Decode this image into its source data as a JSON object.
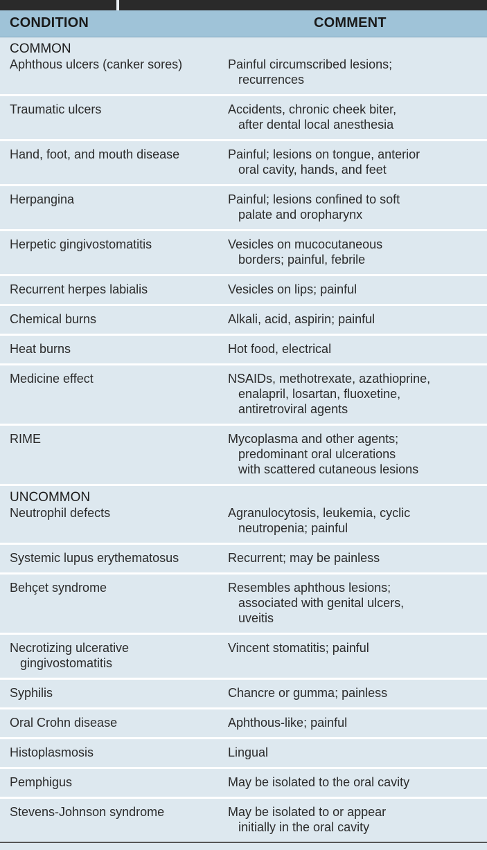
{
  "header": {
    "condition": "CONDITION",
    "comment": "COMMENT"
  },
  "sections": [
    {
      "title": "COMMON",
      "rows": [
        {
          "condition": [
            "Aphthous ulcers (canker sores)"
          ],
          "comment": [
            "Painful circumscribed lesions;",
            "recurrences"
          ]
        },
        {
          "condition": [
            "Traumatic ulcers"
          ],
          "comment": [
            "Accidents, chronic cheek biter,",
            "after dental local anesthesia"
          ]
        },
        {
          "condition": [
            "Hand, foot, and mouth disease"
          ],
          "comment": [
            "Painful; lesions on tongue, anterior",
            "oral cavity, hands, and feet"
          ]
        },
        {
          "condition": [
            "Herpangina"
          ],
          "comment": [
            "Painful; lesions confined to soft",
            "palate and oropharynx"
          ]
        },
        {
          "condition": [
            "Herpetic gingivostomatitis"
          ],
          "comment": [
            "Vesicles on mucocutaneous",
            "borders; painful, febrile"
          ]
        },
        {
          "condition": [
            "Recurrent herpes labialis"
          ],
          "comment": [
            "Vesicles on lips; painful"
          ]
        },
        {
          "condition": [
            "Chemical burns"
          ],
          "comment": [
            "Alkali, acid, aspirin; painful"
          ]
        },
        {
          "condition": [
            "Heat burns"
          ],
          "comment": [
            "Hot food, electrical"
          ]
        },
        {
          "condition": [
            "Medicine effect"
          ],
          "comment": [
            "NSAIDs, methotrexate, azathioprine,",
            "enalapril, losartan, fluoxetine,",
            "antiretroviral agents"
          ]
        },
        {
          "condition": [
            "RIME"
          ],
          "comment": [
            "Mycoplasma and other agents;",
            "predominant oral ulcerations",
            "with scattered cutaneous lesions"
          ]
        }
      ]
    },
    {
      "title": "UNCOMMON",
      "rows": [
        {
          "condition": [
            "Neutrophil defects"
          ],
          "comment": [
            "Agranulocytosis, leukemia, cyclic",
            "neutropenia; painful"
          ]
        },
        {
          "condition": [
            "Systemic lupus erythematosus"
          ],
          "comment": [
            "Recurrent; may be painless"
          ]
        },
        {
          "condition": [
            "Behçet syndrome"
          ],
          "comment": [
            "Resembles aphthous lesions;",
            "associated with genital ulcers,",
            "uveitis"
          ]
        },
        {
          "condition": [
            "Necrotizing ulcerative",
            "gingivostomatitis"
          ],
          "comment": [
            "Vincent stomatitis; painful"
          ]
        },
        {
          "condition": [
            "Syphilis"
          ],
          "comment": [
            "Chancre or gumma; painless"
          ]
        },
        {
          "condition": [
            "Oral Crohn disease"
          ],
          "comment": [
            "Aphthous-like; painful"
          ]
        },
        {
          "condition": [
            "Histoplasmosis"
          ],
          "comment": [
            "Lingual"
          ]
        },
        {
          "condition": [
            "Pemphigus"
          ],
          "comment": [
            "May be isolated to the oral cavity"
          ]
        },
        {
          "condition": [
            "Stevens-Johnson syndrome"
          ],
          "comment": [
            "May be isolated to or appear",
            "initially in the oral cavity"
          ]
        }
      ]
    }
  ]
}
